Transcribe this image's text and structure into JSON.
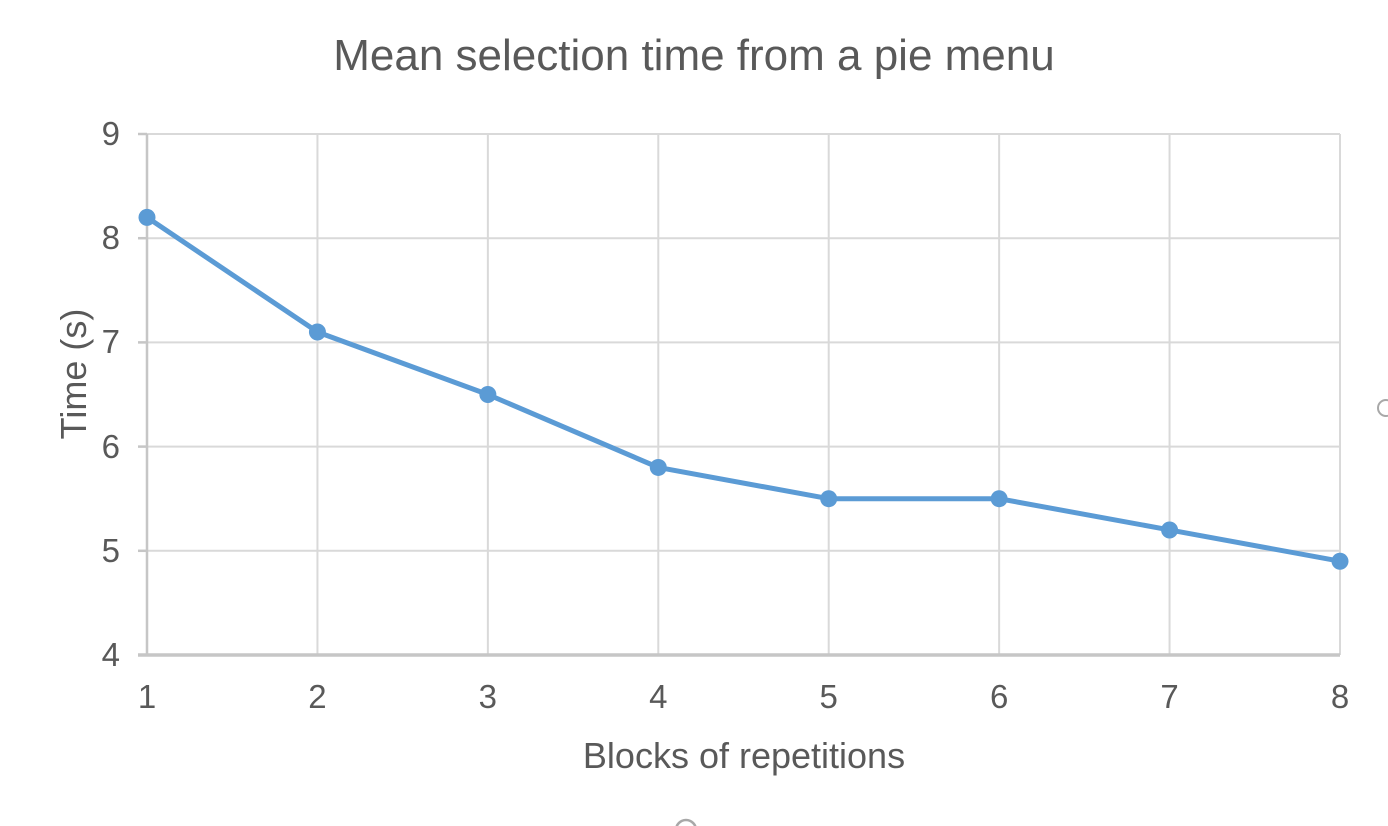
{
  "chart_data": {
    "type": "line",
    "title": "Mean selection time from a pie menu",
    "xlabel": "Blocks of repetitions",
    "ylabel": "Time (s)",
    "x": [
      1,
      2,
      3,
      4,
      5,
      6,
      7,
      8
    ],
    "values": [
      8.2,
      7.1,
      6.5,
      5.8,
      5.5,
      5.5,
      5.2,
      4.9
    ],
    "series_name": "Mean selection time",
    "xlim": [
      1,
      8
    ],
    "ylim": [
      4,
      9
    ],
    "x_ticks": [
      1,
      2,
      3,
      4,
      5,
      6,
      7,
      8
    ],
    "y_ticks": [
      4,
      5,
      6,
      7,
      8,
      9
    ],
    "grid": true,
    "legend_position": "none",
    "marker": "circle"
  },
  "colors": {
    "series_line": "#5b9bd5",
    "marker_fill": "#5b9bd5",
    "gridline": "#d9d9d9",
    "axis_line": "#c6c6c6",
    "text": "#595959",
    "background": "#ffffff",
    "artifact": "#a8a8a8"
  }
}
